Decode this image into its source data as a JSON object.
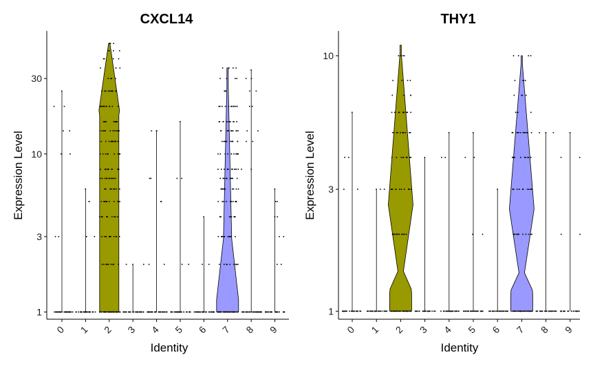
{
  "chart_data": [
    {
      "type": "violin",
      "title": "CXCL14",
      "xlabel": "Identity",
      "ylabel": "Expression Level",
      "y_scale": "log",
      "ylim": [
        0.9,
        60
      ],
      "yticks": [
        1,
        3,
        10,
        30
      ],
      "ytick_labels": [
        "1",
        "3",
        "10",
        "30"
      ],
      "categories": [
        "0",
        "1",
        "2",
        "3",
        "4",
        "5",
        "6",
        "7",
        "8",
        "9"
      ],
      "series": [
        {
          "values": [
            1,
            1,
            1
          ],
          "max": 25,
          "fill": ""
        },
        {
          "values": [
            1,
            1,
            1
          ],
          "max": 6,
          "fill": ""
        },
        {
          "values": [
            1,
            5,
            50
          ],
          "max": 50,
          "fill": "#999900"
        },
        {
          "values": [
            1,
            1,
            1
          ],
          "max": 2,
          "fill": ""
        },
        {
          "values": [
            1,
            1,
            1
          ],
          "max": 14,
          "fill": ""
        },
        {
          "values": [
            1,
            1,
            1
          ],
          "max": 16,
          "fill": ""
        },
        {
          "values": [
            1,
            1,
            1
          ],
          "max": 4,
          "fill": ""
        },
        {
          "values": [
            1,
            2,
            35
          ],
          "max": 35,
          "fill": "#9999ff"
        },
        {
          "values": [
            1,
            1,
            1
          ],
          "max": 34,
          "fill": ""
        },
        {
          "values": [
            1,
            1,
            1
          ],
          "max": 6,
          "fill": ""
        }
      ],
      "grid": false,
      "legend": "none"
    },
    {
      "type": "violin",
      "title": "THY1",
      "xlabel": "Identity",
      "ylabel": "Expression Level",
      "y_scale": "log",
      "ylim": [
        0.93,
        12.5
      ],
      "yticks": [
        1,
        3,
        10
      ],
      "ytick_labels": [
        "1",
        "3",
        "10"
      ],
      "categories": [
        "0",
        "1",
        "2",
        "3",
        "4",
        "5",
        "6",
        "7",
        "8",
        "9"
      ],
      "series": [
        {
          "values": [
            1,
            1,
            1
          ],
          "max": 6,
          "fill": ""
        },
        {
          "values": [
            1,
            1,
            1
          ],
          "max": 3,
          "fill": ""
        },
        {
          "values": [
            1,
            2,
            11
          ],
          "max": 11,
          "fill": "#999900"
        },
        {
          "values": [
            1,
            1,
            1
          ],
          "max": 4,
          "fill": ""
        },
        {
          "values": [
            1,
            1,
            1
          ],
          "max": 5,
          "fill": ""
        },
        {
          "values": [
            1,
            1,
            1
          ],
          "max": 5,
          "fill": ""
        },
        {
          "values": [
            1,
            1,
            1
          ],
          "max": 3,
          "fill": ""
        },
        {
          "values": [
            1,
            2,
            10
          ],
          "max": 10,
          "fill": "#9999ff"
        },
        {
          "values": [
            1,
            1,
            1
          ],
          "max": 5,
          "fill": ""
        },
        {
          "values": [
            1,
            1,
            1
          ],
          "max": 5,
          "fill": ""
        }
      ],
      "grid": false,
      "legend": "none"
    }
  ]
}
